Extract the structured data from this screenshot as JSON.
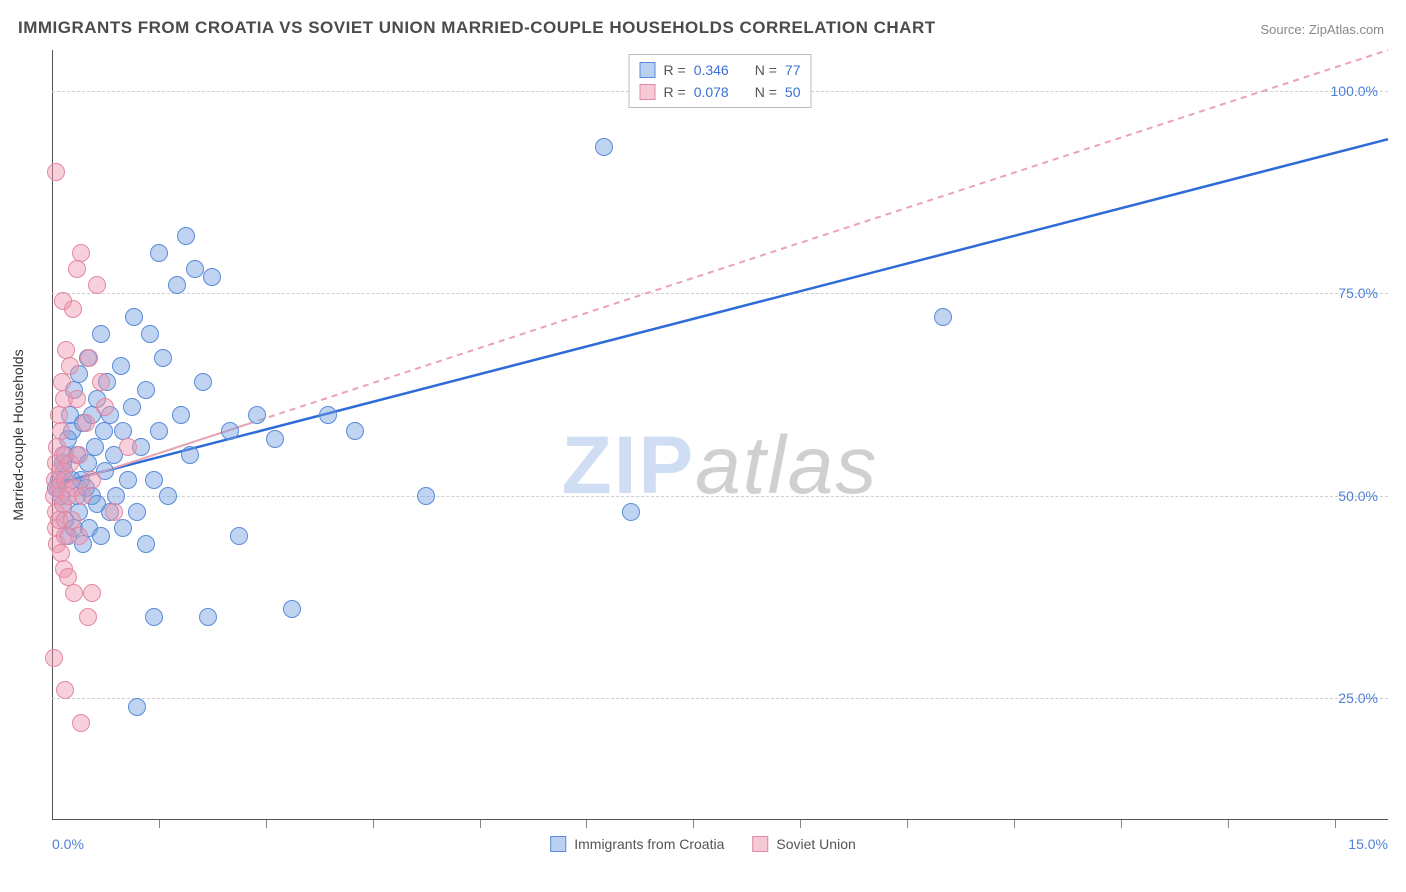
{
  "title": "IMMIGRANTS FROM CROATIA VS SOVIET UNION MARRIED-COUPLE HOUSEHOLDS CORRELATION CHART",
  "source": "Source: ZipAtlas.com",
  "watermark": {
    "part1": "ZIP",
    "part2": "atlas"
  },
  "ylabel": "Married-couple Households",
  "chart": {
    "type": "scatter",
    "background_color": "#ffffff",
    "grid_color": "#cfcfcf",
    "axis_color": "#555555",
    "xlim": [
      0,
      15
    ],
    "ylim": [
      10,
      105
    ],
    "x_axis_labels": {
      "left": "0.0%",
      "right": "15.0%"
    },
    "y_ticks": [
      {
        "value": 25,
        "label": "25.0%"
      },
      {
        "value": 50,
        "label": "50.0%"
      },
      {
        "value": 75,
        "label": "75.0%"
      },
      {
        "value": 100,
        "label": "100.0%"
      }
    ],
    "x_tick_positions": [
      1.2,
      2.4,
      3.6,
      4.8,
      6.0,
      7.2,
      8.4,
      9.6,
      10.8,
      12.0,
      13.2,
      14.4
    ],
    "marker_radius": 9,
    "marker_border_width": 1,
    "tick_label_color": "#4e7fd9",
    "label_fontsize": 14,
    "title_fontsize": 17
  },
  "series": [
    {
      "id": "croatia",
      "label": "Immigrants from Croatia",
      "fill_color": "rgba(115,160,225,0.45)",
      "border_color": "#5a8bd8",
      "swatch_fill": "#b9d0f0",
      "swatch_border": "#5a8bd8",
      "trend": {
        "x1": 0.05,
        "y1": 51.5,
        "x2": 15.0,
        "y2": 94.0,
        "color": "#2e6bd6",
        "width": 2.5,
        "dash": "none",
        "solid_cap_x": 15.0
      },
      "stats": {
        "R": "0.346",
        "N": "77"
      },
      "points": [
        [
          0.05,
          51
        ],
        [
          0.08,
          52
        ],
        [
          0.1,
          50
        ],
        [
          0.12,
          54
        ],
        [
          0.12,
          49
        ],
        [
          0.14,
          53
        ],
        [
          0.15,
          47
        ],
        [
          0.15,
          55
        ],
        [
          0.18,
          57
        ],
        [
          0.18,
          45
        ],
        [
          0.2,
          60
        ],
        [
          0.22,
          52
        ],
        [
          0.22,
          58
        ],
        [
          0.25,
          46
        ],
        [
          0.25,
          63
        ],
        [
          0.28,
          50
        ],
        [
          0.28,
          55
        ],
        [
          0.3,
          48
        ],
        [
          0.3,
          65
        ],
        [
          0.33,
          52
        ],
        [
          0.35,
          59
        ],
        [
          0.35,
          44
        ],
        [
          0.38,
          51
        ],
        [
          0.4,
          67
        ],
        [
          0.4,
          54
        ],
        [
          0.42,
          46
        ],
        [
          0.45,
          60
        ],
        [
          0.45,
          50
        ],
        [
          0.48,
          56
        ],
        [
          0.5,
          62
        ],
        [
          0.5,
          49
        ],
        [
          0.55,
          70
        ],
        [
          0.55,
          45
        ],
        [
          0.58,
          58
        ],
        [
          0.6,
          53
        ],
        [
          0.62,
          64
        ],
        [
          0.65,
          48
        ],
        [
          0.65,
          60
        ],
        [
          0.7,
          55
        ],
        [
          0.72,
          50
        ],
        [
          0.78,
          66
        ],
        [
          0.8,
          46
        ],
        [
          0.8,
          58
        ],
        [
          0.85,
          52
        ],
        [
          0.9,
          61
        ],
        [
          0.92,
          72
        ],
        [
          0.95,
          48
        ],
        [
          1.0,
          56
        ],
        [
          1.05,
          63
        ],
        [
          1.05,
          44
        ],
        [
          1.1,
          70
        ],
        [
          1.15,
          52
        ],
        [
          1.2,
          80
        ],
        [
          1.2,
          58
        ],
        [
          1.25,
          67
        ],
        [
          1.3,
          50
        ],
        [
          1.4,
          76
        ],
        [
          1.45,
          60
        ],
        [
          1.5,
          82
        ],
        [
          1.55,
          55
        ],
        [
          1.6,
          78
        ],
        [
          1.7,
          64
        ],
        [
          1.75,
          35
        ],
        [
          1.8,
          77
        ],
        [
          2.0,
          58
        ],
        [
          2.1,
          45
        ],
        [
          2.3,
          60
        ],
        [
          2.5,
          57
        ],
        [
          2.7,
          36
        ],
        [
          3.1,
          60
        ],
        [
          3.4,
          58
        ],
        [
          4.2,
          50
        ],
        [
          6.2,
          93
        ],
        [
          6.5,
          48
        ],
        [
          10.0,
          72
        ],
        [
          0.95,
          24
        ],
        [
          1.15,
          35
        ]
      ]
    },
    {
      "id": "soviet",
      "label": "Soviet Union",
      "fill_color": "rgba(240,150,175,0.45)",
      "border_color": "#e28aa2",
      "swatch_fill": "#f6c9d6",
      "swatch_border": "#e28aa2",
      "trend": {
        "x1": 0.02,
        "y1": 51.0,
        "x2": 15.0,
        "y2": 105.0,
        "color": "#e9a3b6",
        "width": 2,
        "dash": "6,5",
        "solid_cap_x": 2.2
      },
      "stats": {
        "R": "0.078",
        "N": "50"
      },
      "points": [
        [
          0.02,
          50
        ],
        [
          0.03,
          52
        ],
        [
          0.04,
          48
        ],
        [
          0.05,
          54
        ],
        [
          0.05,
          46
        ],
        [
          0.06,
          56
        ],
        [
          0.06,
          44
        ],
        [
          0.07,
          51
        ],
        [
          0.08,
          60
        ],
        [
          0.08,
          47
        ],
        [
          0.09,
          53
        ],
        [
          0.1,
          43
        ],
        [
          0.1,
          58
        ],
        [
          0.11,
          64
        ],
        [
          0.12,
          49
        ],
        [
          0.12,
          55
        ],
        [
          0.13,
          41
        ],
        [
          0.14,
          62
        ],
        [
          0.15,
          52
        ],
        [
          0.15,
          45
        ],
        [
          0.16,
          68
        ],
        [
          0.18,
          50
        ],
        [
          0.18,
          40
        ],
        [
          0.2,
          66
        ],
        [
          0.2,
          54
        ],
        [
          0.22,
          47
        ],
        [
          0.24,
          73
        ],
        [
          0.25,
          51
        ],
        [
          0.25,
          38
        ],
        [
          0.28,
          62
        ],
        [
          0.3,
          55
        ],
        [
          0.3,
          45
        ],
        [
          0.33,
          80
        ],
        [
          0.35,
          50
        ],
        [
          0.38,
          59
        ],
        [
          0.4,
          35
        ],
        [
          0.42,
          67
        ],
        [
          0.45,
          52
        ],
        [
          0.5,
          76
        ],
        [
          0.05,
          90
        ],
        [
          0.28,
          78
        ],
        [
          0.02,
          30
        ],
        [
          0.15,
          26
        ],
        [
          0.33,
          22
        ],
        [
          0.6,
          61
        ],
        [
          0.7,
          48
        ],
        [
          0.85,
          56
        ],
        [
          0.12,
          74
        ],
        [
          0.45,
          38
        ],
        [
          0.55,
          64
        ]
      ]
    }
  ],
  "legend_top_labels": {
    "R": "R =",
    "N": "N ="
  },
  "legend_bottom": [
    {
      "series": "croatia"
    },
    {
      "series": "soviet"
    }
  ]
}
